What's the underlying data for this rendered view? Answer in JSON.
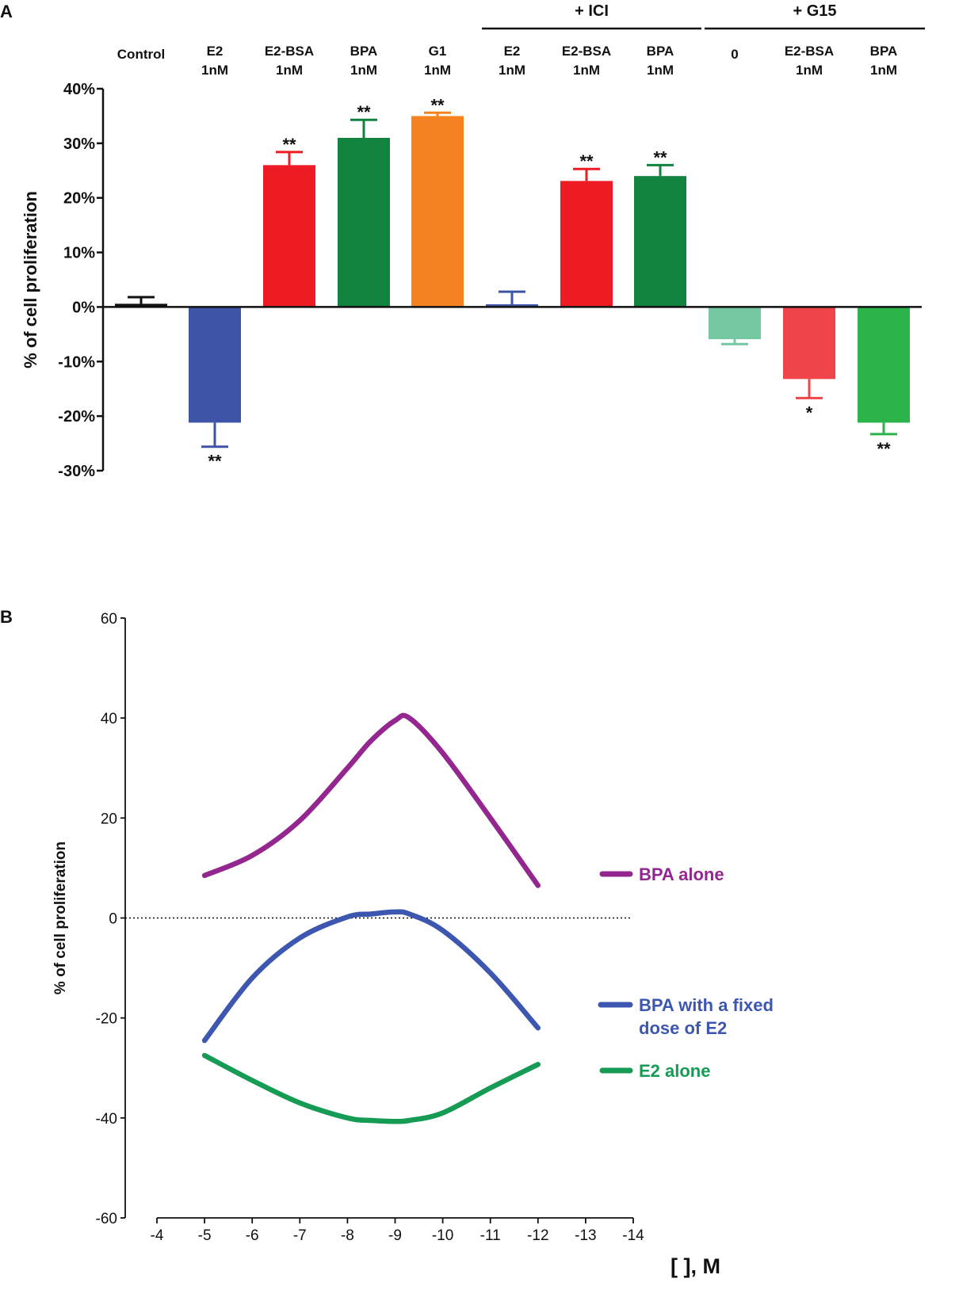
{
  "chart_data": [
    {
      "panel": "A",
      "type": "bar",
      "ylabel": "% of cell proliferation",
      "yticks": [
        "40%",
        "30%",
        "20%",
        "10%",
        "0%",
        "-10%",
        "-20%",
        "-30%"
      ],
      "ylim": [
        -30,
        40
      ],
      "groups": [
        {
          "label": "+ ICI",
          "categories": [
            5,
            6,
            7
          ]
        },
        {
          "label": "+ G15",
          "categories": [
            8,
            9,
            10
          ]
        }
      ],
      "categories": [
        {
          "name": "Control",
          "dose": "",
          "value": 0.3,
          "error": 1.5,
          "color": "#111111",
          "sig": ""
        },
        {
          "name": "E2",
          "dose": "1nM",
          "value": -21.2,
          "error": 4.4,
          "color": "#3d54a7",
          "sig": "**"
        },
        {
          "name": "E2-BSA",
          "dose": "1nM",
          "value": 26.0,
          "error": 2.4,
          "color": "#ed1c24",
          "sig": "**"
        },
        {
          "name": "BPA",
          "dose": "1nM",
          "value": 31.0,
          "error": 3.3,
          "color": "#12823f",
          "sig": "**"
        },
        {
          "name": "G1",
          "dose": "1nM",
          "value": 35.0,
          "error": 0.6,
          "color": "#f58220",
          "sig": "**"
        },
        {
          "name": "E2",
          "dose": "1nM",
          "value": 0.5,
          "error": 2.3,
          "color": "#3d54a7",
          "sig": ""
        },
        {
          "name": "E2-BSA",
          "dose": "1nM",
          "value": 23.1,
          "error": 2.2,
          "color": "#ed1c24",
          "sig": "**"
        },
        {
          "name": "BPA",
          "dose": "1nM",
          "value": 24.0,
          "error": 2.0,
          "color": "#12823f",
          "sig": "**"
        },
        {
          "name": "0",
          "dose": "",
          "value": -5.9,
          "error": 0.9,
          "color": "#74c9a2",
          "sig": ""
        },
        {
          "name": "E2-BSA",
          "dose": "1nM",
          "value": -13.2,
          "error": 3.5,
          "color": "#ef4449",
          "sig": "*"
        },
        {
          "name": "BPA",
          "dose": "1nM",
          "value": -21.2,
          "error": 2.1,
          "color": "#2cb34a",
          "sig": "**"
        }
      ]
    },
    {
      "panel": "B",
      "type": "line",
      "ylabel": "% of cell proliferation",
      "xlabel": "[ ], M",
      "xlim": [
        -4,
        -14
      ],
      "ylim": [
        -60,
        60
      ],
      "xticks": [
        -4,
        -5,
        -6,
        -7,
        -8,
        -9,
        -10,
        -11,
        -12,
        -13,
        -14
      ],
      "yticks": [
        60,
        40,
        20,
        0,
        -20,
        -40,
        -60
      ],
      "reference_line_y": 0,
      "x": [
        -5,
        -6,
        -7,
        -8,
        -8.5,
        -9,
        -9.3,
        -10,
        -11,
        -12
      ],
      "series": [
        {
          "name": "BPA alone",
          "color": "#93278f",
          "values": [
            8.5,
            12.5,
            19.5,
            30,
            35.5,
            39.5,
            40,
            33,
            20,
            6.5
          ]
        },
        {
          "name": "BPA with a fixed dose of E2",
          "color": "#3d57b0",
          "values": [
            -24.5,
            -12,
            -4,
            0.2,
            0.8,
            1.2,
            0.8,
            -2.5,
            -11,
            -22
          ]
        },
        {
          "name": "E2 alone",
          "color": "#169b55",
          "values": [
            -27.5,
            -32.5,
            -37,
            -40,
            -40.5,
            -40.7,
            -40.5,
            -39,
            -34,
            -29.3
          ]
        }
      ]
    }
  ],
  "panel_a_label": "A",
  "panel_b_label": "B",
  "legend_b": {
    "bpa_alone": "BPA alone",
    "bpa_e2_line1": "BPA with a fixed",
    "bpa_e2_line2": "dose of E2",
    "e2_alone": "E2 alone"
  }
}
